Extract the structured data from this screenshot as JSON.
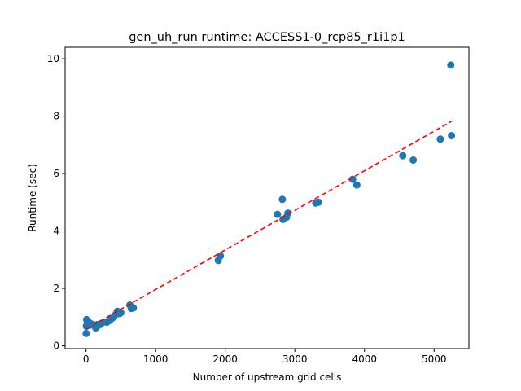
{
  "chart_data": {
    "type": "scatter",
    "title": "gen_uh_run runtime: ACCESS1-0_rcp85_r1i1p1",
    "xlabel": "Number of upstream grid cells",
    "ylabel": "Runtime (sec)",
    "xlim": [
      -300,
      5500
    ],
    "ylim": [
      -0.1,
      10.4
    ],
    "xticks": [
      0,
      1000,
      2000,
      3000,
      4000,
      5000
    ],
    "yticks": [
      0,
      2,
      4,
      6,
      8,
      10
    ],
    "grid": false,
    "point_color": "#1f77b4",
    "fit_color": "#ff0000",
    "points": [
      {
        "x": 2,
        "y": 0.43
      },
      {
        "x": 5,
        "y": 0.68
      },
      {
        "x": 8,
        "y": 0.91
      },
      {
        "x": 15,
        "y": 0.75
      },
      {
        "x": 25,
        "y": 0.7
      },
      {
        "x": 40,
        "y": 0.82
      },
      {
        "x": 60,
        "y": 0.72
      },
      {
        "x": 80,
        "y": 0.76
      },
      {
        "x": 100,
        "y": 0.73
      },
      {
        "x": 120,
        "y": 0.7
      },
      {
        "x": 140,
        "y": 0.62
      },
      {
        "x": 160,
        "y": 0.74
      },
      {
        "x": 190,
        "y": 0.72
      },
      {
        "x": 220,
        "y": 0.78
      },
      {
        "x": 260,
        "y": 0.83
      },
      {
        "x": 300,
        "y": 0.82
      },
      {
        "x": 340,
        "y": 0.88
      },
      {
        "x": 370,
        "y": 0.95
      },
      {
        "x": 400,
        "y": 1.0
      },
      {
        "x": 430,
        "y": 1.1
      },
      {
        "x": 450,
        "y": 1.2
      },
      {
        "x": 480,
        "y": 1.12
      },
      {
        "x": 500,
        "y": 1.15
      },
      {
        "x": 630,
        "y": 1.42
      },
      {
        "x": 650,
        "y": 1.3
      },
      {
        "x": 680,
        "y": 1.32
      },
      {
        "x": 1900,
        "y": 2.97
      },
      {
        "x": 1930,
        "y": 3.13
      },
      {
        "x": 2750,
        "y": 4.58
      },
      {
        "x": 2820,
        "y": 5.1
      },
      {
        "x": 2830,
        "y": 4.4
      },
      {
        "x": 2880,
        "y": 4.48
      },
      {
        "x": 2900,
        "y": 4.62
      },
      {
        "x": 3300,
        "y": 4.97
      },
      {
        "x": 3340,
        "y": 5.0
      },
      {
        "x": 3830,
        "y": 5.8
      },
      {
        "x": 3890,
        "y": 5.6
      },
      {
        "x": 4550,
        "y": 6.62
      },
      {
        "x": 4700,
        "y": 6.47
      },
      {
        "x": 5090,
        "y": 7.2
      },
      {
        "x": 5240,
        "y": 9.78
      },
      {
        "x": 5250,
        "y": 7.32
      }
    ],
    "fit_line": {
      "x": [
        0,
        5250
      ],
      "y": [
        0.58,
        7.82
      ]
    }
  }
}
